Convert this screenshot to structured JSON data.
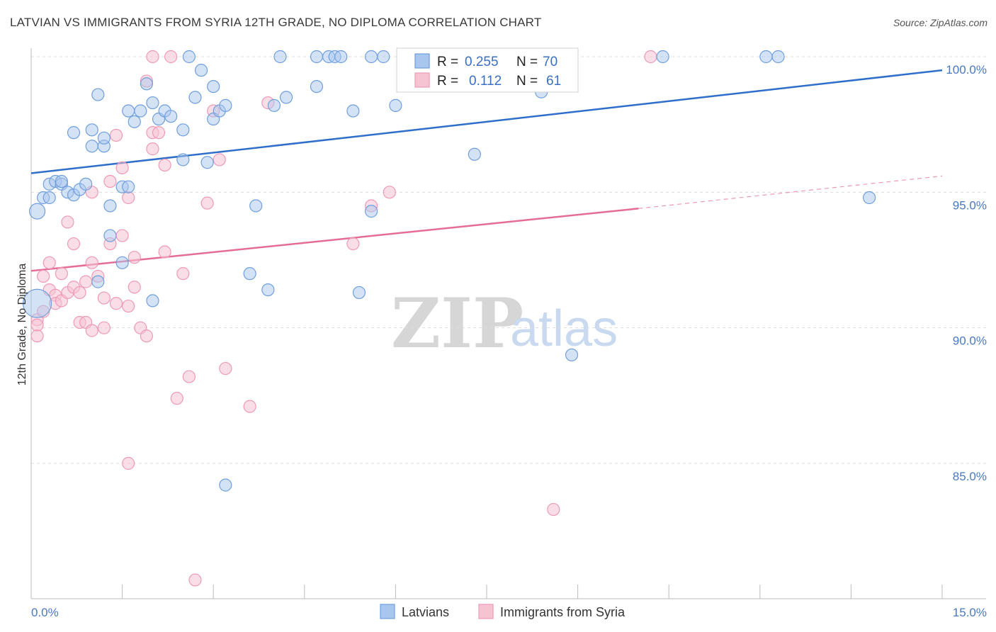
{
  "header": {
    "title": "LATVIAN VS IMMIGRANTS FROM SYRIA 12TH GRADE, NO DIPLOMA CORRELATION CHART",
    "source": "Source: ZipAtlas.com"
  },
  "watermark": {
    "zip": "ZIP",
    "atlas": "atlas"
  },
  "legend_box": {
    "rows": [
      {
        "r_label": "R = ",
        "r_value": "0.255",
        "n_label": "N = ",
        "n_value": "70"
      },
      {
        "r_label": "R = ",
        "r_value": "0.112",
        "n_label": "N = ",
        "n_value": "61"
      }
    ]
  },
  "bottom_legend": {
    "items": [
      "Latvians",
      "Immigrants from Syria"
    ]
  },
  "colors": {
    "latvians_fill": "#a9c6ee",
    "latvians_stroke": "#6f9fdc",
    "latvians_line": "#2f6fca",
    "syria_fill": "#f6c3d3",
    "syria_stroke": "#ee9ab6",
    "syria_line": "#e46d98",
    "tick_label": "#4a78c0",
    "grid": "#dddddd"
  },
  "chart_data": {
    "type": "scatter",
    "title": "LATVIAN VS IMMIGRANTS FROM SYRIA 12TH GRADE, NO DIPLOMA CORRELATION CHART",
    "xlabel": "",
    "ylabel": "12th Grade, No Diploma",
    "xlim": [
      0,
      15
    ],
    "ylim": [
      80.5,
      100.5
    ],
    "x_tick_labels": [
      "0.0%",
      "15.0%"
    ],
    "y_ticks": [
      85,
      90,
      95,
      100
    ],
    "y_tick_labels": [
      "85.0%",
      "90.0%",
      "95.0%",
      "100.0%"
    ],
    "grid": true,
    "legend_position": "top-center",
    "series": [
      {
        "name": "Latvians",
        "R": 0.255,
        "N": 70,
        "trend": {
          "x": [
            0,
            15
          ],
          "y": [
            95.7,
            99.5
          ]
        },
        "points": [
          [
            0.1,
            90.9
          ],
          [
            0.1,
            94.3
          ],
          [
            0.2,
            94.8
          ],
          [
            0.3,
            94.8
          ],
          [
            0.3,
            95.3
          ],
          [
            0.4,
            95.4
          ],
          [
            0.5,
            95.3
          ],
          [
            0.5,
            95.4
          ],
          [
            0.6,
            95.0
          ],
          [
            0.7,
            94.9
          ],
          [
            0.8,
            95.1
          ],
          [
            0.9,
            95.3
          ],
          [
            0.7,
            97.2
          ],
          [
            1.0,
            96.7
          ],
          [
            1.0,
            97.3
          ],
          [
            1.1,
            98.6
          ],
          [
            1.2,
            96.7
          ],
          [
            1.2,
            97.0
          ],
          [
            1.3,
            94.5
          ],
          [
            1.3,
            93.4
          ],
          [
            1.5,
            92.4
          ],
          [
            1.5,
            95.2
          ],
          [
            1.6,
            95.2
          ],
          [
            1.6,
            98.0
          ],
          [
            1.7,
            97.6
          ],
          [
            1.8,
            98.0
          ],
          [
            1.9,
            99.0
          ],
          [
            2.0,
            98.3
          ],
          [
            2.1,
            97.7
          ],
          [
            2.2,
            98.0
          ],
          [
            2.3,
            97.8
          ],
          [
            2.5,
            96.2
          ],
          [
            2.5,
            97.3
          ],
          [
            2.6,
            100.0
          ],
          [
            2.7,
            98.5
          ],
          [
            2.8,
            99.5
          ],
          [
            2.9,
            96.1
          ],
          [
            3.0,
            97.7
          ],
          [
            3.0,
            98.9
          ],
          [
            3.1,
            98.0
          ],
          [
            3.2,
            98.2
          ],
          [
            3.6,
            92.0
          ],
          [
            3.7,
            94.5
          ],
          [
            3.9,
            91.4
          ],
          [
            4.0,
            98.2
          ],
          [
            4.1,
            100.0
          ],
          [
            4.2,
            98.5
          ],
          [
            4.7,
            98.9
          ],
          [
            4.7,
            100.0
          ],
          [
            4.9,
            100.0
          ],
          [
            5.0,
            100.0
          ],
          [
            5.1,
            100.0
          ],
          [
            5.3,
            98.0
          ],
          [
            5.4,
            91.3
          ],
          [
            5.6,
            100.0
          ],
          [
            5.6,
            94.3
          ],
          [
            5.8,
            100.0
          ],
          [
            6.0,
            98.2
          ],
          [
            6.5,
            100.0
          ],
          [
            7.3,
            96.4
          ],
          [
            7.6,
            100.0
          ],
          [
            8.4,
            98.7
          ],
          [
            8.9,
            89.0
          ],
          [
            10.4,
            100.0
          ],
          [
            12.1,
            100.0
          ],
          [
            12.3,
            100.0
          ],
          [
            13.8,
            94.8
          ],
          [
            1.1,
            91.7
          ],
          [
            2.0,
            91.0
          ],
          [
            3.2,
            84.2
          ]
        ]
      },
      {
        "name": "Immigrants from Syria",
        "R": 0.112,
        "N": 61,
        "trend": {
          "x": [
            0,
            10
          ],
          "y": [
            92.1,
            94.4
          ]
        },
        "trend_dashed": {
          "x": [
            10,
            15
          ],
          "y": [
            94.4,
            95.6
          ]
        },
        "points": [
          [
            0.1,
            90.3
          ],
          [
            0.1,
            90.1
          ],
          [
            0.1,
            89.7
          ],
          [
            0.2,
            91.9
          ],
          [
            0.2,
            90.6
          ],
          [
            0.3,
            91.4
          ],
          [
            0.3,
            92.4
          ],
          [
            0.4,
            91.2
          ],
          [
            0.4,
            90.9
          ],
          [
            0.5,
            91.0
          ],
          [
            0.5,
            92.0
          ],
          [
            0.6,
            93.9
          ],
          [
            0.6,
            91.3
          ],
          [
            0.7,
            91.5
          ],
          [
            0.7,
            93.1
          ],
          [
            0.8,
            91.3
          ],
          [
            0.8,
            90.2
          ],
          [
            0.9,
            90.2
          ],
          [
            0.9,
            91.7
          ],
          [
            1.0,
            92.4
          ],
          [
            1.0,
            89.9
          ],
          [
            1.0,
            95.0
          ],
          [
            1.1,
            91.9
          ],
          [
            1.2,
            91.1
          ],
          [
            1.2,
            90.0
          ],
          [
            1.3,
            93.1
          ],
          [
            1.3,
            95.4
          ],
          [
            1.4,
            90.9
          ],
          [
            1.4,
            97.1
          ],
          [
            1.5,
            95.9
          ],
          [
            1.5,
            93.4
          ],
          [
            1.6,
            94.8
          ],
          [
            1.6,
            90.8
          ],
          [
            1.7,
            91.5
          ],
          [
            1.7,
            92.6
          ],
          [
            1.8,
            90.0
          ],
          [
            1.9,
            89.7
          ],
          [
            1.9,
            99.1
          ],
          [
            2.0,
            96.6
          ],
          [
            2.0,
            97.2
          ],
          [
            2.1,
            97.2
          ],
          [
            2.2,
            96.0
          ],
          [
            2.2,
            92.8
          ],
          [
            2.3,
            100.0
          ],
          [
            2.4,
            87.4
          ],
          [
            2.5,
            92.0
          ],
          [
            2.6,
            88.2
          ],
          [
            2.7,
            80.7
          ],
          [
            2.9,
            94.6
          ],
          [
            3.0,
            98.0
          ],
          [
            3.1,
            96.2
          ],
          [
            3.2,
            88.5
          ],
          [
            3.6,
            87.1
          ],
          [
            3.9,
            98.3
          ],
          [
            5.3,
            93.1
          ],
          [
            5.6,
            94.5
          ],
          [
            5.9,
            95.0
          ],
          [
            2.0,
            100.0
          ],
          [
            1.6,
            85.0
          ],
          [
            8.6,
            83.3
          ],
          [
            10.2,
            100.0
          ]
        ]
      }
    ]
  }
}
